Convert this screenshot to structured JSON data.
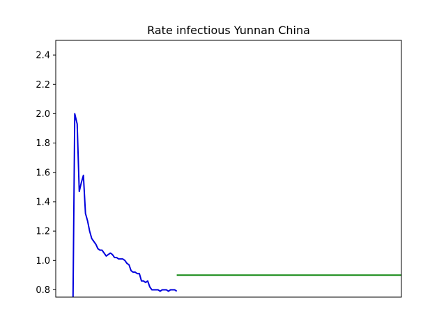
{
  "chart_data": {
    "type": "line",
    "title": "Rate infectious Yunnan China",
    "xlabel": "",
    "ylabel": "",
    "ylim": [
      0.75,
      2.5
    ],
    "xlim": [
      0,
      100
    ],
    "grid": false,
    "yticks": [
      0.8,
      1.0,
      1.2,
      1.4,
      1.6,
      1.8,
      2.0,
      2.2,
      2.4
    ],
    "ytick_labels": [
      "0.8",
      "1.0",
      "1.2",
      "1.4",
      "1.6",
      "1.8",
      "2.0",
      "2.2",
      "2.4"
    ],
    "xticks": [],
    "series": [
      {
        "color": "#0000dd",
        "x": [
          5.0,
          5.5,
          6.2,
          6.8,
          7.4,
          8.0,
          8.6,
          9.2,
          9.8,
          10.4,
          11.0,
          11.6,
          12.2,
          12.8,
          13.4,
          14.0,
          14.6,
          15.2,
          15.8,
          16.4,
          17.0,
          17.6,
          18.2,
          18.8,
          19.4,
          20.0,
          20.6,
          21.2,
          21.8,
          22.4,
          23.0,
          23.6,
          24.2,
          24.8,
          25.4,
          26.0,
          26.6,
          27.2,
          27.8,
          28.4,
          29.0,
          29.6,
          30.2,
          30.8,
          31.4,
          32.0,
          32.6,
          33.2,
          33.8,
          34.4,
          35.0
        ],
        "values": [
          0.75,
          2.0,
          1.93,
          1.47,
          1.53,
          1.58,
          1.32,
          1.27,
          1.2,
          1.15,
          1.13,
          1.11,
          1.08,
          1.07,
          1.07,
          1.05,
          1.03,
          1.04,
          1.05,
          1.04,
          1.02,
          1.02,
          1.01,
          1.01,
          1.01,
          1.0,
          0.98,
          0.97,
          0.93,
          0.92,
          0.92,
          0.91,
          0.91,
          0.86,
          0.86,
          0.85,
          0.86,
          0.82,
          0.8,
          0.8,
          0.8,
          0.8,
          0.79,
          0.8,
          0.8,
          0.8,
          0.79,
          0.8,
          0.8,
          0.8,
          0.79
        ]
      },
      {
        "color": "#007f00",
        "x": [
          35.0,
          100.0
        ],
        "values": [
          0.9,
          0.9
        ]
      }
    ]
  }
}
